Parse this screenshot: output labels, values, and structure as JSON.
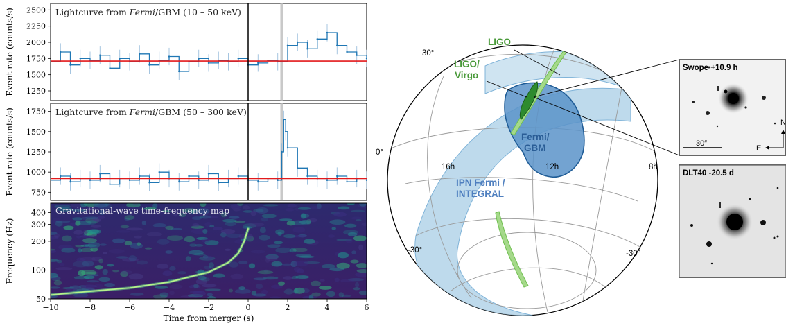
{
  "chart_data": [
    {
      "type": "line",
      "title": "Lightcurve from Fermi/GBM (10 – 50 keV)",
      "title_prefix": "Lightcurve from ",
      "title_italic": "Fermi",
      "title_suffix": "/GBM (10 – 50 keV)",
      "ylabel": "Event rate (counts/s)",
      "xlim": [
        -10,
        6
      ],
      "ylim": [
        1100,
        2600
      ],
      "yticks": [
        1250,
        1500,
        1750,
        2000,
        2250,
        2500
      ],
      "background_level": 1710,
      "merger_time": 0,
      "highlight_time": 1.7,
      "series": [
        {
          "x": [
            -10,
            -9.5,
            -9,
            -8.5,
            -8,
            -7.5,
            -7,
            -6.5,
            -6,
            -5.5,
            -5,
            -4.5,
            -4,
            -3.5,
            -3,
            -2.5,
            -2,
            -1.5,
            -1,
            -0.5,
            0,
            0.5,
            1,
            1.5,
            2,
            2.5,
            3,
            3.5,
            4,
            4.5,
            5,
            5.5,
            6
          ],
          "y": [
            1700,
            1850,
            1650,
            1750,
            1720,
            1800,
            1600,
            1750,
            1700,
            1820,
            1650,
            1720,
            1780,
            1550,
            1700,
            1750,
            1680,
            1720,
            1700,
            1750,
            1650,
            1680,
            1720,
            1700,
            1950,
            2000,
            1900,
            2050,
            2150,
            1950,
            1850,
            1800,
            1750
          ]
        }
      ]
    },
    {
      "type": "line",
      "title": "Lightcurve from Fermi/GBM (50 – 300 keV)",
      "title_prefix": "Lightcurve from ",
      "title_italic": "Fermi",
      "title_suffix": "/GBM (50 – 300 keV)",
      "ylabel": "Event rate (counts/s)",
      "xlim": [
        -10,
        6
      ],
      "ylim": [
        650,
        1850
      ],
      "yticks": [
        750,
        1000,
        1250,
        1500,
        1750
      ],
      "background_level": 920,
      "merger_time": 0,
      "highlight_time": 1.7,
      "series": [
        {
          "x": [
            -10,
            -9.5,
            -9,
            -8.5,
            -8,
            -7.5,
            -7,
            -6.5,
            -6,
            -5.5,
            -5,
            -4.5,
            -4,
            -3.5,
            -3,
            -2.5,
            -2,
            -1.5,
            -1,
            -0.5,
            0,
            0.5,
            1,
            1.5,
            1.7,
            1.8,
            1.9,
            2,
            2.5,
            3,
            3.5,
            4,
            4.5,
            5,
            5.5,
            6
          ],
          "y": [
            900,
            950,
            880,
            920,
            900,
            980,
            850,
            920,
            900,
            950,
            870,
            1000,
            920,
            880,
            950,
            900,
            980,
            870,
            920,
            950,
            900,
            880,
            920,
            900,
            1250,
            1650,
            1500,
            1300,
            1050,
            950,
            920,
            900,
            950,
            880,
            920,
            900
          ]
        }
      ]
    },
    {
      "type": "heatmap",
      "title": "Gravitational-wave time-frequency map",
      "ylabel": "Frequency (Hz)",
      "xlabel": "Time from merger (s)",
      "xlim": [
        -10,
        6
      ],
      "ylim": [
        50,
        500
      ],
      "y_scale": "log",
      "xticks": [
        -10,
        -8,
        -6,
        -4,
        -2,
        0,
        2,
        4,
        6
      ],
      "yticks": [
        50,
        100,
        200,
        300,
        400
      ],
      "chirp": {
        "x": [
          -10,
          -8,
          -6,
          -4,
          -2,
          -1,
          -0.5,
          -0.2,
          0
        ],
        "y": [
          55,
          60,
          65,
          75,
          95,
          120,
          150,
          200,
          270
        ]
      }
    }
  ],
  "skymap": {
    "labels": {
      "ligo": "LIGO",
      "ligo_virgo_1": "LIGO/",
      "ligo_virgo_2": "Virgo",
      "fermi_1": "Fermi/",
      "fermi_2": "GBM",
      "ipn_1": "IPN Fermi /",
      "ipn_2": "INTEGRAL"
    },
    "grid_labels": {
      "dec_30": "30°",
      "dec_0": "0°",
      "dec_m30_left": "-30°",
      "dec_m30_right": "-30°",
      "ra_16h": "16h",
      "ra_12h": "12h",
      "ra_8h": "8h"
    },
    "colors": {
      "ipn": "#a8cde6",
      "fermi": "#5b93c9",
      "fermi_edge": "#1f5c96",
      "ligo": "#a5d98a",
      "ligo_virgo": "#2e8b2e",
      "ligo_text": "#4a9a3a",
      "fermi_text": "#2a5d96",
      "ipn_text": "#4f7fbf"
    }
  },
  "insets": {
    "swope": {
      "label": "Swope +10.9 h",
      "scale": "30″",
      "east": "E",
      "north": "N"
    },
    "dlt40": {
      "label": "DLT40 -20.5 d"
    }
  }
}
